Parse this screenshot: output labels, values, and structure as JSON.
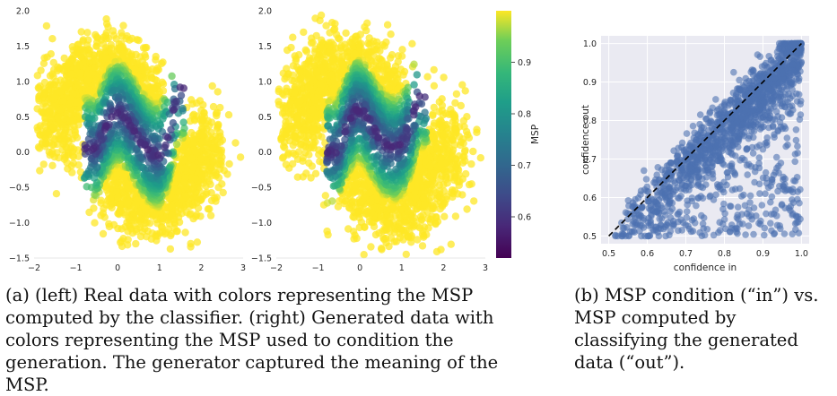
{
  "chart_data": [
    {
      "type": "scatter",
      "panel": "real data (left)",
      "title": "",
      "xlabel": "",
      "ylabel": "",
      "xlim": [
        -2,
        3
      ],
      "ylim": [
        -1.5,
        2.0
      ],
      "xticks": [
        "−2",
        "−1",
        "0",
        "1",
        "2",
        "3"
      ],
      "yticks": [
        "−1.5",
        "−1.0",
        "−0.5",
        "0.0",
        "0.5",
        "1.0",
        "1.5",
        "2.0"
      ],
      "grid": false,
      "series": [
        {
          "shape": "ridge",
          "curve": "y = 0.25 + 0.6*cos(pi*(x+0.05)/1.15) roughly; two-moons boundary",
          "msp_low": 0.52,
          "msp_high": 0.99,
          "points": [
            [
              -0.5,
              0.05
            ],
            [
              -0.3,
              0.35
            ],
            [
              -0.1,
              0.55
            ],
            [
              0.1,
              0.55
            ],
            [
              0.3,
              0.4
            ],
            [
              0.55,
              0.15
            ],
            [
              0.8,
              -0.02
            ],
            [
              1.0,
              -0.05
            ],
            [
              1.2,
              0.2
            ],
            [
              1.35,
              0.6
            ],
            [
              1.45,
              0.9
            ]
          ]
        }
      ]
    },
    {
      "type": "scatter",
      "panel": "generated data (right)",
      "title": "",
      "xlabel": "",
      "ylabel": "",
      "xlim": [
        -2,
        3
      ],
      "ylim": [
        -1.5,
        2.0
      ],
      "xticks": [
        "−2",
        "−1",
        "0",
        "1",
        "2",
        "3"
      ],
      "yticks": [
        "−1.5",
        "−1.0",
        "−0.5",
        "0.0",
        "0.5",
        "1.0",
        "1.5",
        "2.0"
      ],
      "grid": false,
      "colorbar": {
        "label": "MSP",
        "range": [
          0.52,
          1.0
        ],
        "ticks": [
          "0.6",
          "0.7",
          "0.8",
          "0.9"
        ],
        "colormap": "viridis"
      },
      "series": [
        {
          "shape": "ridge",
          "points": [
            [
              -0.55,
              0.0
            ],
            [
              -0.3,
              0.4
            ],
            [
              -0.1,
              0.6
            ],
            [
              0.1,
              0.55
            ],
            [
              0.35,
              0.3
            ],
            [
              0.6,
              0.1
            ],
            [
              0.85,
              0.05
            ],
            [
              1.05,
              0.15
            ],
            [
              1.25,
              0.45
            ],
            [
              1.4,
              0.8
            ]
          ]
        }
      ]
    },
    {
      "type": "scatter",
      "panel": "(b)",
      "title": "",
      "xlabel": "confidence in",
      "ylabel": "confidence out",
      "xlim": [
        0.48,
        1.02
      ],
      "ylim": [
        0.48,
        1.02
      ],
      "xticks": [
        "0.5",
        "0.6",
        "0.7",
        "0.8",
        "0.9",
        "1.0"
      ],
      "yticks": [
        "0.5",
        "0.6",
        "0.7",
        "0.8",
        "0.9",
        "1.0"
      ],
      "grid": true,
      "reference_line": {
        "from": [
          0.5,
          0.5
        ],
        "to": [
          1.0,
          1.0
        ],
        "style": "dashed",
        "color": "#000000"
      },
      "series": [
        {
          "color": "#4c72b0",
          "points_count": 1500
        }
      ]
    }
  ],
  "captions": {
    "a": "(a) (left) Real data with colors representing the MSP computed by the classifier. (right) Generated data with colors representing the MSP used to condition the generation. The generator captured the meaning of the MSP.",
    "b": "(b) MSP condition (“in”) vs. MSP computed by classifying the generated data (“out”)."
  }
}
